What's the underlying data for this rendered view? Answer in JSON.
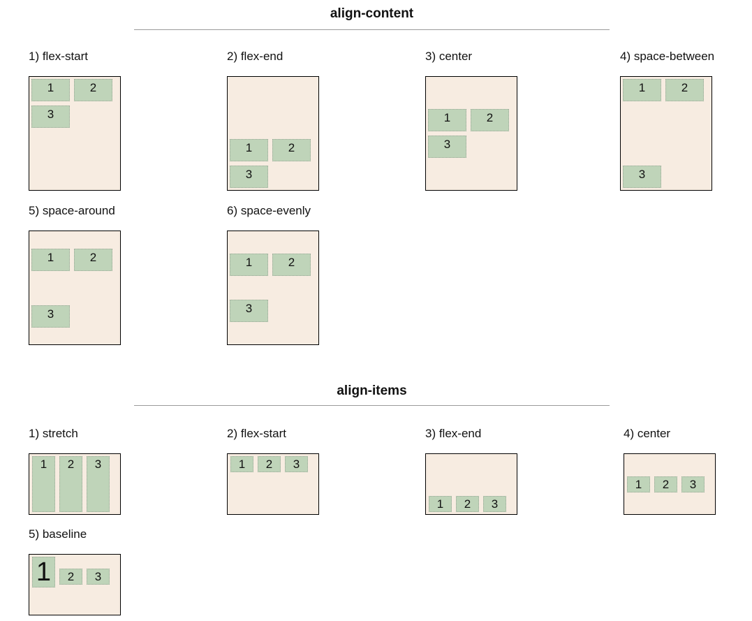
{
  "align_content": {
    "title": "align-content",
    "demos": [
      {
        "label": "1) flex-start",
        "value": "flex-start",
        "items": [
          "1",
          "2",
          "3"
        ]
      },
      {
        "label": "2) flex-end",
        "value": "flex-end",
        "items": [
          "1",
          "2",
          "3"
        ]
      },
      {
        "label": "3) center",
        "value": "center",
        "items": [
          "1",
          "2",
          "3"
        ]
      },
      {
        "label": "4) space-between",
        "value": "space-between",
        "items": [
          "1",
          "2",
          "3"
        ]
      },
      {
        "label": "5) space-around",
        "value": "space-around",
        "items": [
          "1",
          "2",
          "3"
        ]
      },
      {
        "label": "6) space-evenly",
        "value": "space-evenly",
        "items": [
          "1",
          "2",
          "3"
        ]
      }
    ]
  },
  "align_items": {
    "title": "align-items",
    "demos": [
      {
        "label": "1) stretch",
        "value": "stretch",
        "items": [
          "1",
          "2",
          "3"
        ]
      },
      {
        "label": "2) flex-start",
        "value": "flex-start",
        "items": [
          "1",
          "2",
          "3"
        ]
      },
      {
        "label": "3) flex-end",
        "value": "flex-end",
        "items": [
          "1",
          "2",
          "3"
        ]
      },
      {
        "label": "4) center",
        "value": "center",
        "items": [
          "1",
          "2",
          "3"
        ]
      },
      {
        "label": "5) baseline",
        "value": "baseline",
        "items": [
          "1",
          "2",
          "3"
        ]
      }
    ]
  },
  "colors": {
    "container_bg": "#f7ece1",
    "item_bg": "#bfd4b9",
    "rule": "#9a9a9a"
  }
}
